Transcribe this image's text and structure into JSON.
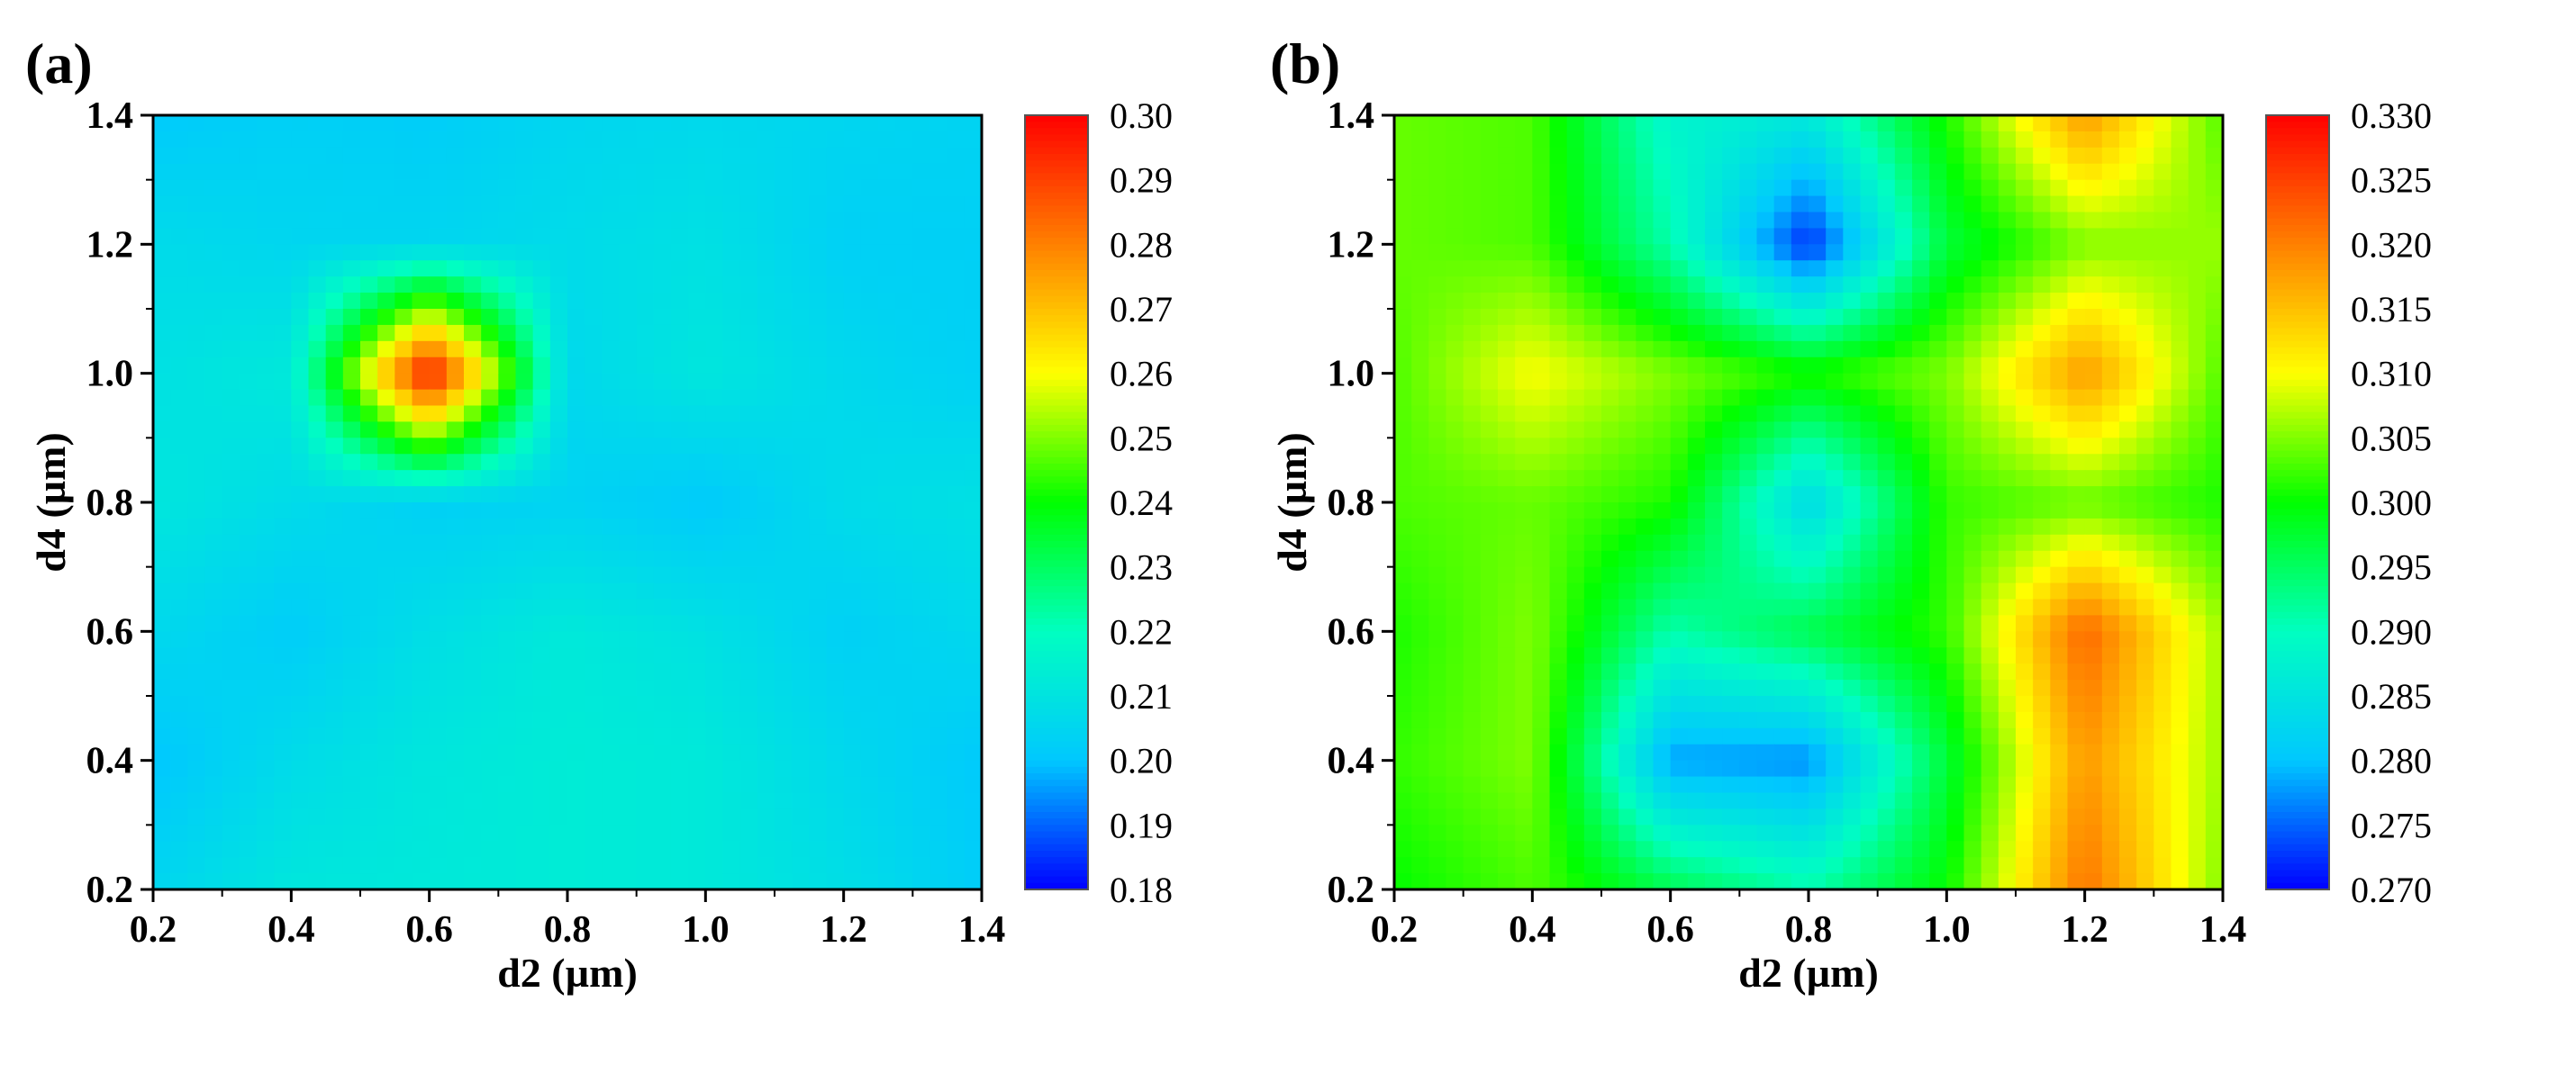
{
  "chart_data": [
    {
      "type": "heatmap",
      "panel_label": "(a)",
      "xlabel": "d2 (µm)",
      "ylabel": "d4 (µm)",
      "xlim": [
        0.2,
        1.4
      ],
      "ylim": [
        0.2,
        1.4
      ],
      "x_ticks": [
        "0.2",
        "0.4",
        "0.6",
        "0.8",
        "1.0",
        "1.2",
        "1.4"
      ],
      "y_ticks": [
        "0.2",
        "0.4",
        "0.6",
        "0.8",
        "1.0",
        "1.2",
        "1.4"
      ],
      "x": [
        0.2,
        0.4,
        0.6,
        0.8,
        1.0,
        1.2,
        1.4
      ],
      "y": [
        0.2,
        0.4,
        0.6,
        0.8,
        1.0,
        1.2,
        1.4
      ],
      "z": [
        [
          0.205,
          0.211,
          0.212,
          0.213,
          0.212,
          0.208,
          0.202
        ],
        [
          0.2,
          0.207,
          0.211,
          0.213,
          0.212,
          0.206,
          0.201
        ],
        [
          0.206,
          0.202,
          0.208,
          0.212,
          0.209,
          0.203,
          0.206
        ],
        [
          0.211,
          0.207,
          0.203,
          0.204,
          0.201,
          0.207,
          0.209
        ],
        [
          0.209,
          0.212,
          0.298,
          0.206,
          0.211,
          0.206,
          0.203
        ],
        [
          0.207,
          0.205,
          0.205,
          0.207,
          0.209,
          0.203,
          0.203
        ],
        [
          0.201,
          0.203,
          0.202,
          0.205,
          0.206,
          0.205,
          0.204
        ]
      ],
      "colorbar": {
        "min": 0.18,
        "max": 0.3,
        "ticks": [
          "0.30",
          "0.29",
          "0.28",
          "0.27",
          "0.26",
          "0.25",
          "0.24",
          "0.23",
          "0.22",
          "0.21",
          "0.20",
          "0.19",
          "0.18"
        ]
      },
      "colormap": [
        "#0000ff",
        "#00c8ff",
        "#00ffc0",
        "#00ff00",
        "#ffff00",
        "#ff8000",
        "#ff0000"
      ]
    },
    {
      "type": "heatmap",
      "panel_label": "(b)",
      "xlabel": "d2 (µm)",
      "ylabel": "d4 (µm)",
      "xlim": [
        0.2,
        1.4
      ],
      "ylim": [
        0.2,
        1.4
      ],
      "x_ticks": [
        "0.2",
        "0.4",
        "0.6",
        "0.8",
        "1.0",
        "1.2",
        "1.4"
      ],
      "y_ticks": [
        "0.2",
        "0.4",
        "0.6",
        "0.8",
        "1.0",
        "1.2",
        "1.4"
      ],
      "x": [
        0.2,
        0.4,
        0.6,
        0.8,
        1.0,
        1.2,
        1.4
      ],
      "y": [
        0.2,
        0.4,
        0.6,
        0.8,
        1.0,
        1.2,
        1.4
      ],
      "z": [
        [
          0.3,
          0.303,
          0.296,
          0.291,
          0.3,
          0.321,
          0.305
        ],
        [
          0.302,
          0.305,
          0.278,
          0.277,
          0.297,
          0.318,
          0.306
        ],
        [
          0.301,
          0.305,
          0.291,
          0.296,
          0.302,
          0.322,
          0.306
        ],
        [
          0.303,
          0.304,
          0.301,
          0.283,
          0.302,
          0.304,
          0.301
        ],
        [
          0.303,
          0.31,
          0.305,
          0.301,
          0.305,
          0.318,
          0.303
        ],
        [
          0.304,
          0.303,
          0.291,
          0.272,
          0.297,
          0.305,
          0.306
        ],
        [
          0.304,
          0.303,
          0.288,
          0.286,
          0.301,
          0.318,
          0.303
        ]
      ],
      "colorbar": {
        "min": 0.27,
        "max": 0.33,
        "ticks": [
          "0.330",
          "0.325",
          "0.320",
          "0.315",
          "0.310",
          "0.305",
          "0.300",
          "0.295",
          "0.290",
          "0.285",
          "0.280",
          "0.275",
          "0.270"
        ]
      },
      "colormap": [
        "#0000ff",
        "#00c8ff",
        "#00ffc0",
        "#00ff00",
        "#ffff00",
        "#ff8000",
        "#ff0000"
      ]
    }
  ]
}
